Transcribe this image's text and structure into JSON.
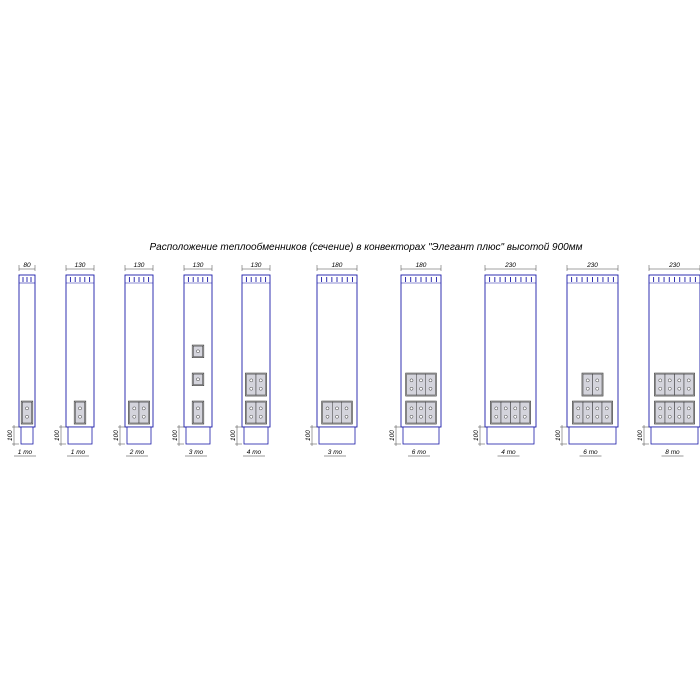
{
  "title": "Расположение теплообменников (сечение) в конвекторах \"Элегант плюс\" высотой 900мм",
  "base_dimension": "100",
  "colors": {
    "outline": "#1a1aa8",
    "grille": "#1a1aa8",
    "exchanger_fill": "#d4d4dc",
    "exchanger_stroke": "#333333",
    "dim_line": "#444444"
  },
  "units": [
    {
      "width_label": "80",
      "label": "1 то",
      "rows": [
        [
          1
        ]
      ]
    },
    {
      "width_label": "130",
      "label": "1 то",
      "rows": [
        [
          1
        ]
      ]
    },
    {
      "width_label": "130",
      "label": "2 то",
      "rows": [
        [
          2
        ]
      ]
    },
    {
      "width_label": "130",
      "label": "3 то",
      "rows": [
        [
          1
        ],
        [
          1
        ],
        [
          1
        ]
      ]
    },
    {
      "width_label": "130",
      "label": "4 то",
      "rows": [
        [
          2
        ],
        [
          2
        ]
      ]
    },
    {
      "width_label": "180",
      "label": "3 то",
      "rows": [
        [
          3
        ]
      ]
    },
    {
      "width_label": "180",
      "label": "6 то",
      "rows": [
        [
          3
        ],
        [
          3
        ]
      ]
    },
    {
      "width_label": "230",
      "label": "4 то",
      "rows": [
        [
          4
        ]
      ]
    },
    {
      "width_label": "230",
      "label": "6 то",
      "rows": [
        [
          2
        ],
        [
          4
        ]
      ]
    },
    {
      "width_label": "230",
      "label": "8 то",
      "rows": [
        [
          4
        ],
        [
          4
        ]
      ]
    }
  ]
}
